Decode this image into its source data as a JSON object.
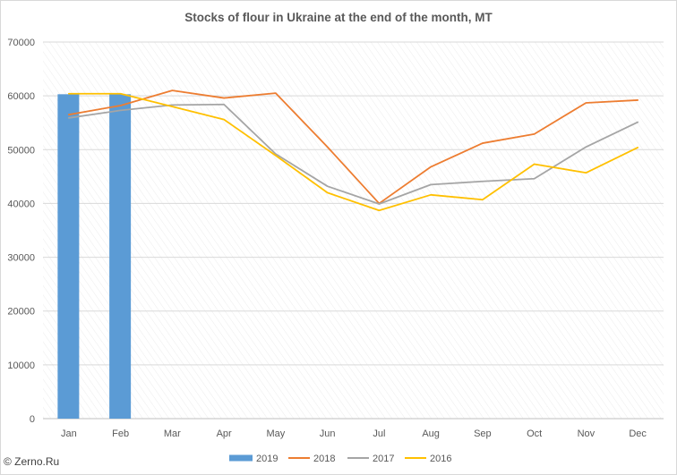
{
  "chart_data": {
    "type": "bar",
    "title": "Stocks of flour in Ukraine at the end of the month, MT",
    "categories": [
      "Jan",
      "Feb",
      "Mar",
      "Apr",
      "May",
      "Jun",
      "Jul",
      "Aug",
      "Sep",
      "Oct",
      "Nov",
      "Dec"
    ],
    "yticks": [
      "0",
      "10000",
      "20000",
      "30000",
      "40000",
      "50000",
      "60000",
      "70000"
    ],
    "ylim": [
      0,
      70000
    ],
    "grid": true,
    "legend_position": "bottom",
    "series": [
      {
        "name": "2019",
        "kind": "bar",
        "color": "#5b9bd5",
        "values": [
          60300,
          60300,
          null,
          null,
          null,
          null,
          null,
          null,
          null,
          null,
          null,
          null
        ]
      },
      {
        "name": "2018",
        "kind": "line",
        "color": "#ed7d31",
        "values": [
          56500,
          58200,
          61000,
          59600,
          60500,
          50500,
          40000,
          46800,
          51200,
          52900,
          58700,
          59200
        ]
      },
      {
        "name": "2017",
        "kind": "line",
        "color": "#a5a5a5",
        "values": [
          55900,
          57300,
          58300,
          58400,
          49200,
          43200,
          39900,
          43500,
          44100,
          44600,
          50500,
          55100
        ]
      },
      {
        "name": "2016",
        "kind": "line",
        "color": "#ffc000",
        "values": [
          60400,
          60400,
          58000,
          55600,
          48900,
          42000,
          38700,
          41600,
          40700,
          47300,
          45700,
          50400
        ]
      }
    ]
  },
  "footer": {
    "copyright": "© Zerno.Ru"
  }
}
